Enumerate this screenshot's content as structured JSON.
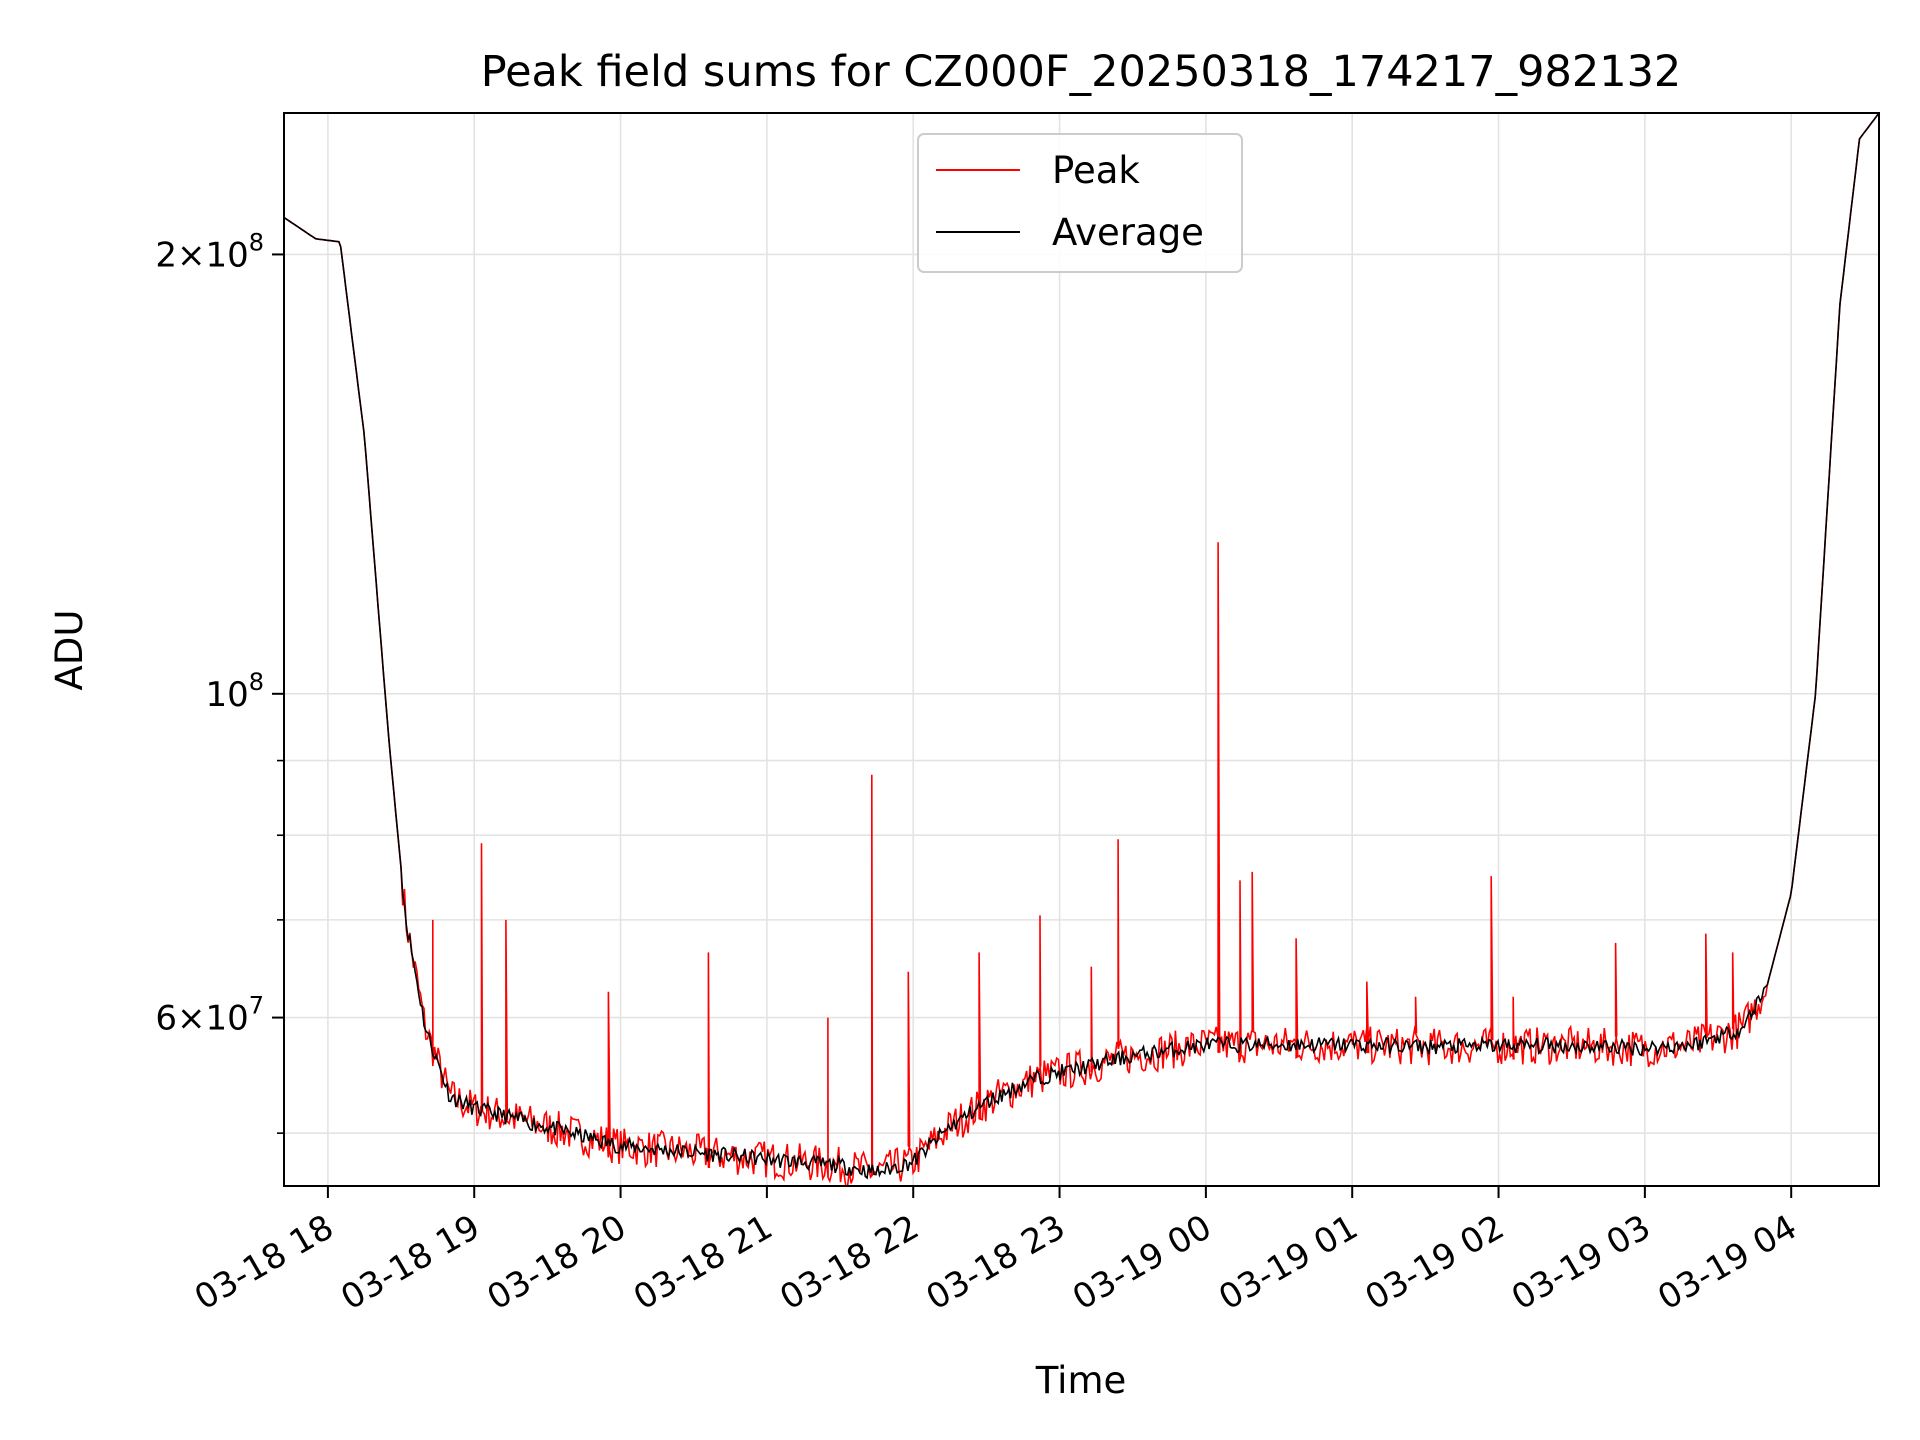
{
  "chart_data": {
    "type": "line",
    "title": "Peak field sums for CZ000F_20250318_174217_982132",
    "xlabel": "Time",
    "ylabel": "ADU",
    "yscale": "log",
    "ylim": [
      46000000,
      250000000
    ],
    "xlim": [
      "2025-03-18 17:42",
      "2025-03-19 04:36"
    ],
    "grid": true,
    "legend_position": "top-center",
    "x_ticks": [
      {
        "label": "03-18 18",
        "value": "2025-03-18 18:00"
      },
      {
        "label": "03-18 19",
        "value": "2025-03-18 19:00"
      },
      {
        "label": "03-18 20",
        "value": "2025-03-18 20:00"
      },
      {
        "label": "03-18 21",
        "value": "2025-03-18 21:00"
      },
      {
        "label": "03-18 22",
        "value": "2025-03-18 22:00"
      },
      {
        "label": "03-18 23",
        "value": "2025-03-18 23:00"
      },
      {
        "label": "03-19 00",
        "value": "2025-03-19 00:00"
      },
      {
        "label": "03-19 01",
        "value": "2025-03-19 01:00"
      },
      {
        "label": "03-19 02",
        "value": "2025-03-19 02:00"
      },
      {
        "label": "03-19 03",
        "value": "2025-03-19 03:00"
      },
      {
        "label": "03-19 04",
        "value": "2025-03-19 04:00"
      }
    ],
    "y_ticks": [
      {
        "base": "2",
        "exp": "8",
        "value": 200000000
      },
      {
        "base": "",
        "exp": "8",
        "value": 100000000
      },
      {
        "base": "6",
        "exp": "7",
        "value": 60000000
      }
    ],
    "y_minor_ticks": [
      50000000,
      70000000,
      80000000,
      90000000
    ],
    "series": [
      {
        "name": "Peak",
        "color": "#ff0000",
        "x": [
          "2025-03-18 17:42",
          "2025-03-18 17:55",
          "2025-03-18 18:05",
          "2025-03-18 18:15",
          "2025-03-18 18:20",
          "2025-03-18 18:25",
          "2025-03-18 18:32",
          "2025-03-18 18:40",
          "2025-03-18 18:50",
          "2025-03-18 19:00",
          "2025-03-18 19:30",
          "2025-03-18 20:00",
          "2025-03-18 20:30",
          "2025-03-18 21:00",
          "2025-03-18 21:30",
          "2025-03-18 21:45",
          "2025-03-18 22:00",
          "2025-03-18 22:15",
          "2025-03-18 22:30",
          "2025-03-18 22:50",
          "2025-03-18 23:00",
          "2025-03-18 23:30",
          "2025-03-19 00:00",
          "2025-03-19 00:30",
          "2025-03-19 01:00",
          "2025-03-19 01:30",
          "2025-03-19 02:00",
          "2025-03-19 02:30",
          "2025-03-19 03:00",
          "2025-03-19 03:20",
          "2025-03-19 03:40",
          "2025-03-19 03:50",
          "2025-03-19 04:00",
          "2025-03-19 04:10",
          "2025-03-19 04:20",
          "2025-03-19 04:28",
          "2025-03-19 04:36"
        ],
        "values": [
          212000000,
          205000000,
          204000000,
          150000000,
          118000000,
          93000000,
          70000000,
          59000000,
          53000000,
          52000000,
          50500000,
          49000000,
          48500000,
          48000000,
          47500000,
          47000000,
          47800000,
          50500000,
          52500000,
          54500000,
          55000000,
          56500000,
          57500000,
          57500000,
          57500000,
          57300000,
          57400000,
          57400000,
          57200000,
          57500000,
          59000000,
          63000000,
          73000000,
          100000000,
          185000000,
          240000000,
          250000000
        ],
        "spikes": [
          {
            "x": "2025-03-18 18:43",
            "value": 70000000
          },
          {
            "x": "2025-03-18 19:03",
            "value": 79000000
          },
          {
            "x": "2025-03-18 19:13",
            "value": 70000000
          },
          {
            "x": "2025-03-18 19:55",
            "value": 62500000
          },
          {
            "x": "2025-03-18 20:36",
            "value": 66500000
          },
          {
            "x": "2025-03-18 21:25",
            "value": 60000000
          },
          {
            "x": "2025-03-18 21:43",
            "value": 88000000
          },
          {
            "x": "2025-03-18 21:58",
            "value": 64500000
          },
          {
            "x": "2025-03-18 22:27",
            "value": 66500000
          },
          {
            "x": "2025-03-18 22:52",
            "value": 70500000
          },
          {
            "x": "2025-03-18 23:13",
            "value": 65000000
          },
          {
            "x": "2025-03-18 23:24",
            "value": 79500000
          },
          {
            "x": "2025-03-19 00:05",
            "value": 127000000
          },
          {
            "x": "2025-03-19 00:14",
            "value": 74500000
          },
          {
            "x": "2025-03-19 00:19",
            "value": 75500000
          },
          {
            "x": "2025-03-19 00:37",
            "value": 68000000
          },
          {
            "x": "2025-03-19 01:06",
            "value": 63500000
          },
          {
            "x": "2025-03-19 01:26",
            "value": 62000000
          },
          {
            "x": "2025-03-19 01:57",
            "value": 75000000
          },
          {
            "x": "2025-03-19 02:06",
            "value": 62000000
          },
          {
            "x": "2025-03-19 02:48",
            "value": 67500000
          },
          {
            "x": "2025-03-19 03:25",
            "value": 68500000
          },
          {
            "x": "2025-03-19 03:36",
            "value": 66500000
          }
        ]
      },
      {
        "name": "Average",
        "color": "#000000",
        "x": [
          "2025-03-18 17:42",
          "2025-03-18 17:55",
          "2025-03-18 18:05",
          "2025-03-18 18:15",
          "2025-03-18 18:20",
          "2025-03-18 18:25",
          "2025-03-18 18:32",
          "2025-03-18 18:40",
          "2025-03-18 18:50",
          "2025-03-18 19:00",
          "2025-03-18 19:30",
          "2025-03-18 20:00",
          "2025-03-18 20:30",
          "2025-03-18 21:00",
          "2025-03-18 21:30",
          "2025-03-18 21:45",
          "2025-03-18 22:00",
          "2025-03-18 22:15",
          "2025-03-18 22:30",
          "2025-03-18 22:50",
          "2025-03-18 23:00",
          "2025-03-18 23:30",
          "2025-03-19 00:00",
          "2025-03-19 00:30",
          "2025-03-19 01:00",
          "2025-03-19 01:30",
          "2025-03-19 02:00",
          "2025-03-19 02:30",
          "2025-03-19 03:00",
          "2025-03-19 03:20",
          "2025-03-19 03:40",
          "2025-03-19 03:50",
          "2025-03-19 04:00",
          "2025-03-19 04:10",
          "2025-03-19 04:20",
          "2025-03-19 04:28",
          "2025-03-19 04:36"
        ],
        "values": [
          212000000,
          205000000,
          204000000,
          150000000,
          118000000,
          93000000,
          70000000,
          59000000,
          53000000,
          52000000,
          50500000,
          49000000,
          48500000,
          48000000,
          47500000,
          47000000,
          47800000,
          50500000,
          52500000,
          54500000,
          55000000,
          56500000,
          57500000,
          57500000,
          57500000,
          57300000,
          57400000,
          57400000,
          57200000,
          57500000,
          59000000,
          63000000,
          73000000,
          100000000,
          185000000,
          240000000,
          250000000
        ]
      }
    ]
  }
}
